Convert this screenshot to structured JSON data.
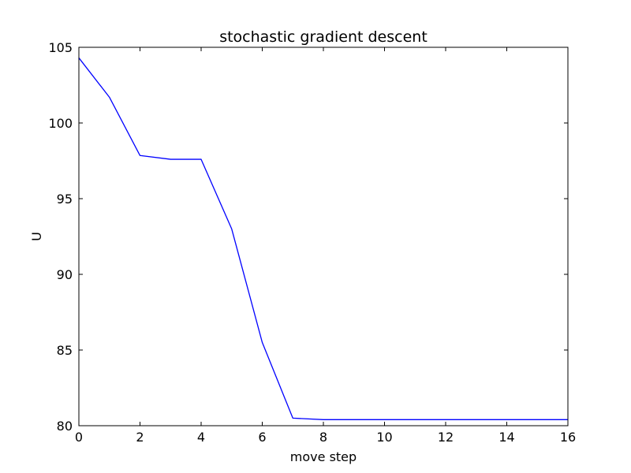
{
  "chart_data": {
    "type": "line",
    "title": "stochastic gradient descent",
    "xlabel": "move step",
    "ylabel": "U",
    "xlim": [
      0,
      16
    ],
    "ylim": [
      80,
      105
    ],
    "xticks": [
      0,
      2,
      4,
      6,
      8,
      10,
      12,
      14,
      16
    ],
    "yticks": [
      80,
      85,
      90,
      95,
      100,
      105
    ],
    "grid": false,
    "series": [
      {
        "color": "#0000ff",
        "x": [
          0,
          1,
          2,
          3,
          4,
          5,
          6,
          7,
          8,
          9,
          10,
          11,
          12,
          13,
          14,
          15,
          16
        ],
        "y": [
          104.3,
          101.7,
          97.85,
          97.6,
          97.6,
          93.0,
          85.5,
          80.5,
          80.4,
          80.4,
          80.4,
          80.4,
          80.4,
          80.4,
          80.4,
          80.4,
          80.4
        ]
      }
    ]
  }
}
